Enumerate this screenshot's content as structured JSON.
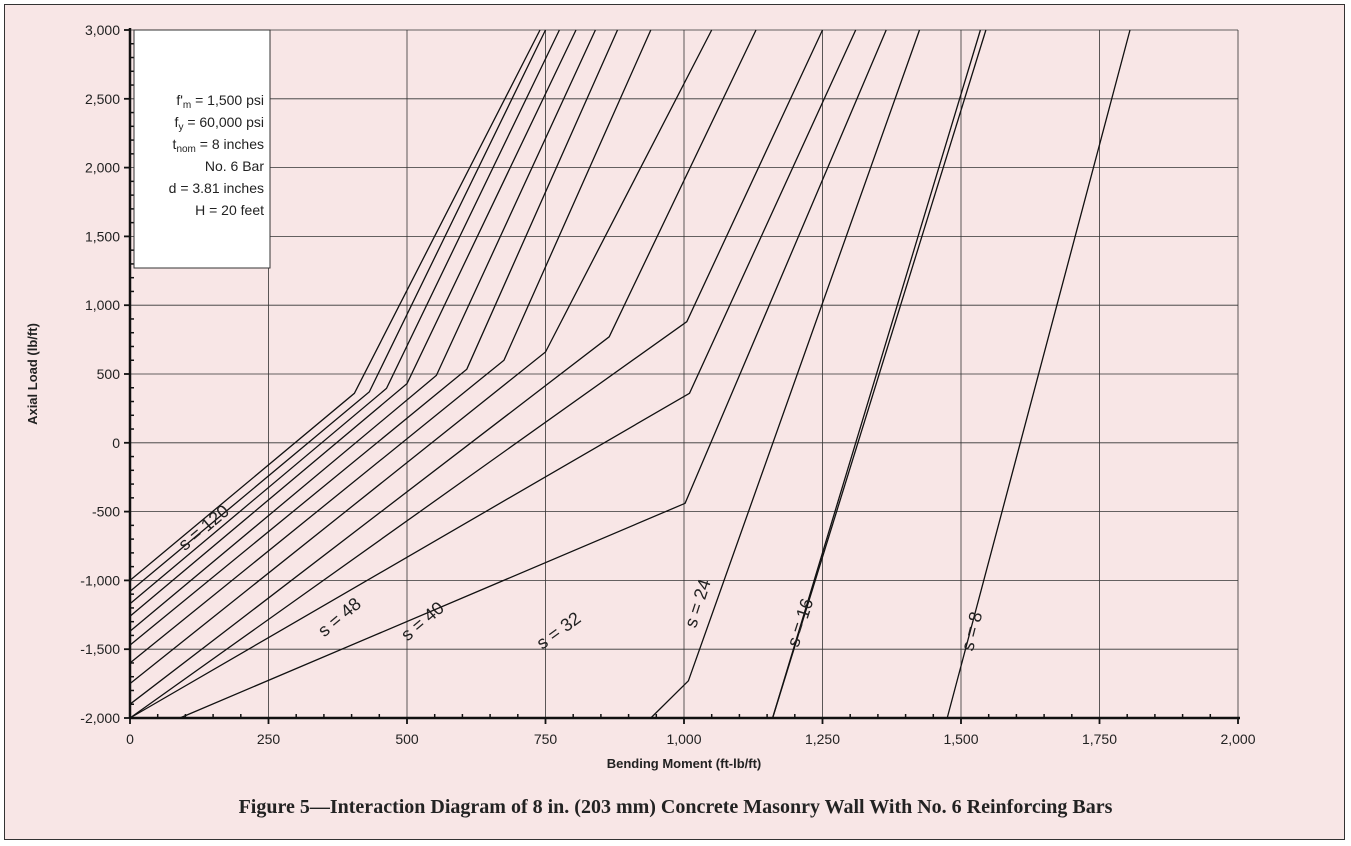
{
  "caption": "Figure 5—Interaction Diagram of 8 in. (203 mm) Concrete Masonry Wall With No. 6 Reinforcing Bars",
  "legend_box": {
    "lines": [
      {
        "main": "f'",
        "sub": "m",
        "rest": " = 1,500 psi"
      },
      {
        "main": "f",
        "sub": "y",
        "rest": " = 60,000 psi"
      },
      {
        "main": "t",
        "sub": "nom",
        "rest": " = 8 inches"
      },
      {
        "main": "No. 6 Bar",
        "sub": "",
        "rest": ""
      },
      {
        "main": "d = 3.81 inches",
        "sub": "",
        "rest": ""
      },
      {
        "main": "H = 20 feet",
        "sub": "",
        "rest": ""
      }
    ]
  },
  "chart_data": {
    "type": "line",
    "title": "",
    "xlabel": "Bending Moment (ft-lb/ft)",
    "ylabel": "Axial Load (lb/ft)",
    "xlim": [
      0,
      2000
    ],
    "ylim": [
      -2000,
      3000
    ],
    "x_ticks": [
      0,
      250,
      500,
      750,
      1000,
      1250,
      1500,
      1750,
      2000
    ],
    "y_ticks": [
      -2000,
      -1500,
      -1000,
      -500,
      0,
      500,
      1000,
      1500,
      2000,
      2500,
      3000
    ],
    "x_tick_labels": [
      "0",
      "250",
      "500",
      "750",
      "1,000",
      "1,250",
      "1,500",
      "1,750",
      "2,000"
    ],
    "y_tick_labels": [
      "-2,000",
      "-1,500",
      "-1,000",
      "-500",
      "0",
      "500",
      "1,000",
      "1,500",
      "2,000",
      "2,500",
      "3,000"
    ],
    "grid": true,
    "series": [
      {
        "name": "s = 120",
        "points": [
          [
            0,
            -1000
          ],
          [
            405,
            360
          ],
          [
            740,
            3000
          ]
        ]
      },
      {
        "name": "",
        "points": [
          [
            0,
            -1080
          ],
          [
            432,
            370
          ],
          [
            750,
            3000
          ]
        ]
      },
      {
        "name": "",
        "points": [
          [
            0,
            -1170
          ],
          [
            463,
            395
          ],
          [
            775,
            3000
          ]
        ]
      },
      {
        "name": "",
        "points": [
          [
            0,
            -1260
          ],
          [
            500,
            430
          ],
          [
            805,
            3000
          ]
        ]
      },
      {
        "name": "",
        "points": [
          [
            0,
            -1370
          ],
          [
            553,
            490
          ],
          [
            840,
            3000
          ]
        ]
      },
      {
        "name": "",
        "points": [
          [
            0,
            -1470
          ],
          [
            608,
            535
          ],
          [
            880,
            3000
          ]
        ]
      },
      {
        "name": "s = 48",
        "points": [
          [
            0,
            -1600
          ],
          [
            675,
            600
          ],
          [
            940,
            3000
          ]
        ]
      },
      {
        "name": "",
        "points": [
          [
            0,
            -1750
          ],
          [
            750,
            660
          ],
          [
            1050,
            3000
          ]
        ]
      },
      {
        "name": "s = 40",
        "points": [
          [
            0,
            -1900
          ],
          [
            865,
            770
          ],
          [
            1130,
            3000
          ]
        ]
      },
      {
        "name": "",
        "points": [
          [
            0,
            -2000
          ],
          [
            1005,
            880
          ],
          [
            1250,
            3000
          ]
        ]
      },
      {
        "name": "s = 32",
        "points": [
          [
            0,
            -2000
          ],
          [
            1010,
            360
          ],
          [
            1310,
            3000
          ]
        ]
      },
      {
        "name": "",
        "points": [
          [
            90,
            -2000
          ],
          [
            1002,
            -440
          ],
          [
            1365,
            3000
          ]
        ]
      },
      {
        "name": "s = 24",
        "points": [
          [
            940,
            -2000
          ],
          [
            1008,
            -1730
          ],
          [
            1425,
            3000
          ]
        ]
      },
      {
        "name": "",
        "points": [
          [
            1160,
            -2000
          ],
          [
            1535,
            3000
          ]
        ]
      },
      {
        "name": "s = 16",
        "points": [
          [
            1160,
            -2000
          ],
          [
            1545,
            3000
          ]
        ]
      },
      {
        "name": "s = 8",
        "points": [
          [
            1475,
            -2000
          ],
          [
            1805,
            3000
          ]
        ]
      }
    ],
    "series_labels": [
      {
        "text": "s = 120",
        "x": 140,
        "y": -650,
        "angle": -40
      },
      {
        "text": "s = 48",
        "x": 385,
        "y": -1300,
        "angle": -40
      },
      {
        "text": "s = 40",
        "x": 535,
        "y": -1330,
        "angle": -40
      },
      {
        "text": "s = 32",
        "x": 780,
        "y": -1400,
        "angle": -36
      },
      {
        "text": "s = 24",
        "x": 1035,
        "y": -1180,
        "angle": -72
      },
      {
        "text": "s = 16",
        "x": 1220,
        "y": -1320,
        "angle": -72
      },
      {
        "text": "s = 8",
        "x": 1530,
        "y": -1380,
        "angle": -76
      }
    ]
  }
}
